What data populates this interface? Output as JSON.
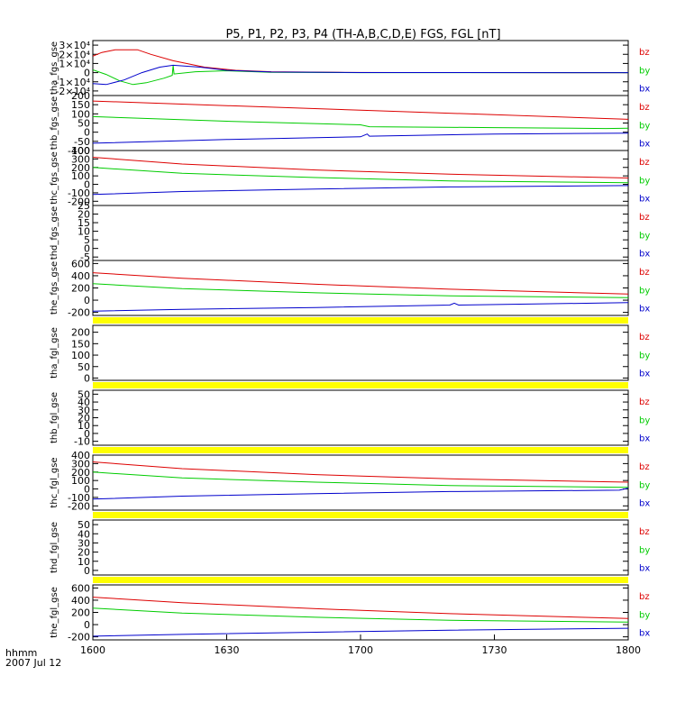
{
  "title": "P5, P1, P2, P3, P4 (TH-A,B,C,D,E) FGS, FGL [nT]",
  "footer": {
    "time_unit": "hhmm",
    "date": "2007 Jul 12"
  },
  "colors": {
    "bx": "#0000cc",
    "by": "#00cc00",
    "bz": "#dd0000",
    "gap": "#ffff00",
    "axis": "#000000"
  },
  "chart_data": {
    "type": "line",
    "x_ticks": [
      "1600",
      "1630",
      "1700",
      "1730",
      "1800"
    ],
    "x_range": [
      "16:00",
      "18:00"
    ],
    "legend": [
      "bz",
      "by",
      "bx"
    ],
    "panels": [
      {
        "ylabel": "tha_fgs_gse",
        "yticks": [
          -20000,
          -10000,
          0,
          10000,
          20000,
          30000
        ],
        "ytick_labels": [
          "-2×10⁴",
          "-1×10⁴",
          "0",
          "1×10⁴",
          "2×10⁴",
          "3×10⁴"
        ],
        "ylim": [
          -25000,
          35000
        ],
        "gap_after": false,
        "series": [
          {
            "name": "bz",
            "points": [
              [
                0,
                18000
              ],
              [
                2,
                22000
              ],
              [
                5,
                25000
              ],
              [
                10,
                25000
              ],
              [
                13,
                20000
              ],
              [
                18,
                13000
              ],
              [
                25,
                6000
              ],
              [
                32,
                2500
              ],
              [
                40,
                1000
              ],
              [
                55,
                300
              ],
              [
                70,
                100
              ],
              [
                120,
                0
              ]
            ]
          },
          {
            "name": "by",
            "points": [
              [
                0,
                3000
              ],
              [
                3,
                -2000
              ],
              [
                6,
                -9000
              ],
              [
                9,
                -13000
              ],
              [
                12,
                -11000
              ],
              [
                16,
                -6000
              ],
              [
                17.8,
                -3000
              ],
              [
                18,
                8000
              ],
              [
                18.2,
                -1500
              ],
              [
                23,
                1000
              ],
              [
                30,
                2000
              ],
              [
                40,
                300
              ],
              [
                60,
                0
              ],
              [
                120,
                0
              ]
            ]
          },
          {
            "name": "bx",
            "points": [
              [
                0,
                -12000
              ],
              [
                3,
                -13000
              ],
              [
                7,
                -8000
              ],
              [
                11,
                0
              ],
              [
                15,
                6000
              ],
              [
                18,
                8000
              ],
              [
                24,
                6000
              ],
              [
                30,
                2500
              ],
              [
                40,
                700
              ],
              [
                60,
                100
              ],
              [
                120,
                0
              ]
            ]
          }
        ]
      },
      {
        "ylabel": "thb_fgs_gse",
        "yticks": [
          -100,
          -50,
          0,
          50,
          100,
          150,
          200
        ],
        "ytick_labels": [
          "-100",
          "-50",
          "0",
          "50",
          "100",
          "150",
          "200"
        ],
        "ylim": [
          -100,
          200
        ],
        "gap_after": false,
        "series": [
          {
            "name": "bz",
            "points": [
              [
                0,
                170
              ],
              [
                30,
                145
              ],
              [
                60,
                120
              ],
              [
                90,
                95
              ],
              [
                120,
                70
              ]
            ]
          },
          {
            "name": "by",
            "points": [
              [
                0,
                85
              ],
              [
                30,
                60
              ],
              [
                60,
                40
              ],
              [
                62,
                30
              ],
              [
                90,
                25
              ],
              [
                115,
                20
              ],
              [
                120,
                22
              ]
            ]
          },
          {
            "name": "bx",
            "points": [
              [
                0,
                -60
              ],
              [
                30,
                -40
              ],
              [
                60,
                -25
              ],
              [
                61.5,
                -10
              ],
              [
                62,
                -22
              ],
              [
                90,
                -10
              ],
              [
                120,
                -5
              ]
            ]
          }
        ]
      },
      {
        "ylabel": "thc_fgs_gse",
        "yticks": [
          -200,
          -100,
          0,
          100,
          200,
          300,
          400
        ],
        "ytick_labels": [
          "-200",
          "-100",
          "0",
          "100",
          "200",
          "300",
          "400"
        ],
        "ylim": [
          -250,
          400
        ],
        "gap_after": false,
        "series": [
          {
            "name": "bz",
            "points": [
              [
                0,
                320
              ],
              [
                20,
                240
              ],
              [
                50,
                170
              ],
              [
                80,
                120
              ],
              [
                120,
                75
              ]
            ]
          },
          {
            "name": "by",
            "points": [
              [
                0,
                200
              ],
              [
                20,
                130
              ],
              [
                50,
                80
              ],
              [
                80,
                40
              ],
              [
                120,
                20
              ]
            ]
          },
          {
            "name": "bx",
            "points": [
              [
                0,
                -120
              ],
              [
                20,
                -85
              ],
              [
                50,
                -55
              ],
              [
                80,
                -30
              ],
              [
                120,
                -15
              ]
            ]
          }
        ]
      },
      {
        "ylabel": "thd_fgs_gse",
        "yticks": [
          -5,
          0,
          5,
          10,
          15,
          20,
          25
        ],
        "ytick_labels": [
          "-5",
          "0",
          "5",
          "10",
          "15",
          "20",
          "25"
        ],
        "ylim": [
          -7,
          25
        ],
        "gap_after": false,
        "series": []
      },
      {
        "ylabel": "the_fgs_gse",
        "yticks": [
          -200,
          0,
          200,
          400,
          600
        ],
        "ytick_labels": [
          "-200",
          "0",
          "200",
          "400",
          "600"
        ],
        "ylim": [
          -250,
          650
        ],
        "gap_after": true,
        "series": [
          {
            "name": "bz",
            "points": [
              [
                0,
                450
              ],
              [
                20,
                360
              ],
              [
                50,
                260
              ],
              [
                80,
                180
              ],
              [
                120,
                100
              ]
            ]
          },
          {
            "name": "by",
            "points": [
              [
                0,
                270
              ],
              [
                20,
                190
              ],
              [
                50,
                120
              ],
              [
                80,
                70
              ],
              [
                120,
                40
              ]
            ]
          },
          {
            "name": "bx",
            "points": [
              [
                0,
                -180
              ],
              [
                20,
                -150
              ],
              [
                50,
                -120
              ],
              [
                80,
                -80
              ],
              [
                81,
                -50
              ],
              [
                82,
                -80
              ],
              [
                120,
                -40
              ]
            ]
          }
        ]
      },
      {
        "ylabel": "tha_fgl_gse",
        "yticks": [
          0,
          50,
          100,
          150,
          200
        ],
        "ytick_labels": [
          "0",
          "50",
          "100",
          "150",
          "200"
        ],
        "ylim": [
          -10,
          230
        ],
        "gap_after": true,
        "series": []
      },
      {
        "ylabel": "thb_fgl_gse",
        "yticks": [
          -10,
          0,
          10,
          20,
          30,
          40,
          50
        ],
        "ytick_labels": [
          "-10",
          "0",
          "10",
          "20",
          "30",
          "40",
          "50"
        ],
        "ylim": [
          -15,
          55
        ],
        "gap_after": true,
        "series": []
      },
      {
        "ylabel": "thc_fgl_gse",
        "yticks": [
          -200,
          -100,
          0,
          100,
          200,
          300,
          400
        ],
        "ytick_labels": [
          "-200",
          "-100",
          "0",
          "100",
          "200",
          "300",
          "400"
        ],
        "ylim": [
          -250,
          400
        ],
        "gap_after": true,
        "series": [
          {
            "name": "bz",
            "points": [
              [
                0,
                320
              ],
              [
                20,
                240
              ],
              [
                50,
                170
              ],
              [
                80,
                120
              ],
              [
                120,
                80
              ]
            ]
          },
          {
            "name": "by",
            "points": [
              [
                0,
                200
              ],
              [
                20,
                130
              ],
              [
                50,
                80
              ],
              [
                80,
                40
              ],
              [
                120,
                20
              ]
            ]
          },
          {
            "name": "bx",
            "points": [
              [
                0,
                -120
              ],
              [
                20,
                -85
              ],
              [
                50,
                -55
              ],
              [
                80,
                -30
              ],
              [
                118,
                -15
              ],
              [
                120,
                10
              ]
            ]
          }
        ]
      },
      {
        "ylabel": "thd_fgl_gse",
        "yticks": [
          0,
          10,
          20,
          30,
          40,
          50
        ],
        "ytick_labels": [
          "0",
          "10",
          "20",
          "30",
          "40",
          "50"
        ],
        "ylim": [
          -5,
          55
        ],
        "gap_after": true,
        "series": []
      },
      {
        "ylabel": "the_fgl_gse",
        "yticks": [
          -200,
          0,
          200,
          400,
          600
        ],
        "ytick_labels": [
          "-200",
          "0",
          "200",
          "400",
          "600"
        ],
        "ylim": [
          -250,
          650
        ],
        "gap_after": false,
        "series": [
          {
            "name": "bz",
            "points": [
              [
                0,
                450
              ],
              [
                20,
                360
              ],
              [
                50,
                260
              ],
              [
                80,
                180
              ],
              [
                120,
                100
              ]
            ]
          },
          {
            "name": "by",
            "points": [
              [
                0,
                270
              ],
              [
                20,
                190
              ],
              [
                50,
                120
              ],
              [
                80,
                70
              ],
              [
                120,
                40
              ]
            ]
          },
          {
            "name": "bx",
            "points": [
              [
                0,
                -190
              ],
              [
                20,
                -160
              ],
              [
                50,
                -125
              ],
              [
                80,
                -90
              ],
              [
                120,
                -60
              ]
            ]
          }
        ]
      }
    ]
  }
}
